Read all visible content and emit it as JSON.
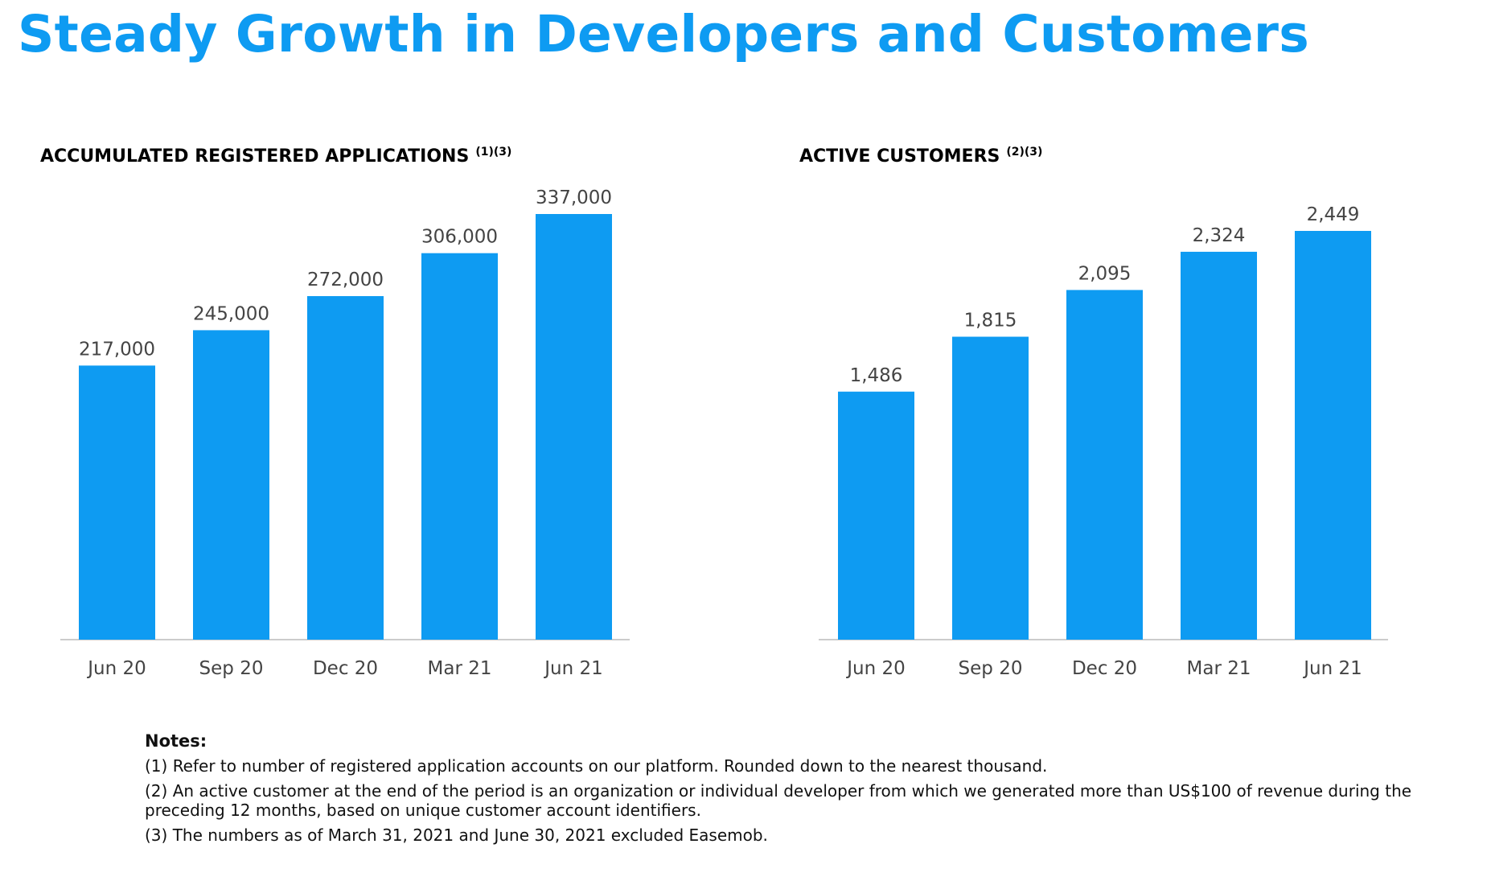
{
  "title": "Steady Growth in Developers and Customers",
  "colors": {
    "accent": "#0e9bf2",
    "bar": "#0e9bf2",
    "label": "#444444",
    "axis": "#cccccc"
  },
  "charts": {
    "left": {
      "title": "ACCUMULATED REGISTERED APPLICATIONS",
      "notes_ref": "(1)(3)"
    },
    "right": {
      "title": "ACTIVE CUSTOMERS",
      "notes_ref": "(2)(3)"
    }
  },
  "chart_data": [
    {
      "type": "bar",
      "title": "ACCUMULATED REGISTERED APPLICATIONS",
      "categories": [
        "Jun 20",
        "Sep 20",
        "Dec 20",
        "Mar 21",
        "Jun 21"
      ],
      "values": [
        217000,
        245000,
        272000,
        306000,
        337000
      ],
      "value_labels": [
        "217,000",
        "245,000",
        "272,000",
        "306,000",
        "337,000"
      ],
      "ylim": [
        0,
        337000
      ],
      "grid": false,
      "legend": "none"
    },
    {
      "type": "bar",
      "title": "ACTIVE CUSTOMERS",
      "categories": [
        "Jun 20",
        "Sep 20",
        "Dec 20",
        "Mar 21",
        "Jun 21"
      ],
      "values": [
        1486,
        1815,
        2095,
        2324,
        2449
      ],
      "value_labels": [
        "1,486",
        "1,815",
        "2,095",
        "2,324",
        "2,449"
      ],
      "ylim": [
        0,
        2449
      ],
      "grid": false,
      "legend": "none"
    }
  ],
  "notes": {
    "heading": "Notes:",
    "items": [
      "(1) Refer to number of registered application accounts on our platform. Rounded down to the nearest thousand.",
      "(2) An active customer at the end of the period is an organization or individual developer from which we generated more than US$100 of revenue during the preceding 12 months, based on unique customer account identifiers.",
      "(3) The numbers as of March 31, 2021 and June 30, 2021 excluded Easemob."
    ]
  }
}
